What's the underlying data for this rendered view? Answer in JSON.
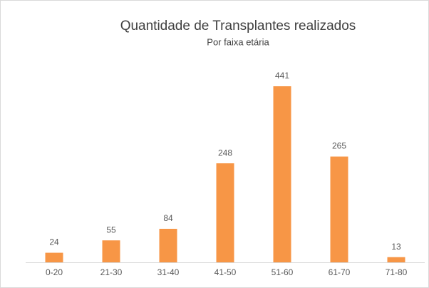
{
  "chart_data": {
    "type": "bar",
    "title": "Quantidade de Transplantes realizados",
    "subtitle": "Por faixa etária",
    "categories": [
      "0-20",
      "21-30",
      "31-40",
      "41-50",
      "51-60",
      "61-70",
      "71-80"
    ],
    "values": [
      24,
      55,
      84,
      248,
      441,
      265,
      13
    ],
    "color": "#f79646",
    "grid": false
  }
}
